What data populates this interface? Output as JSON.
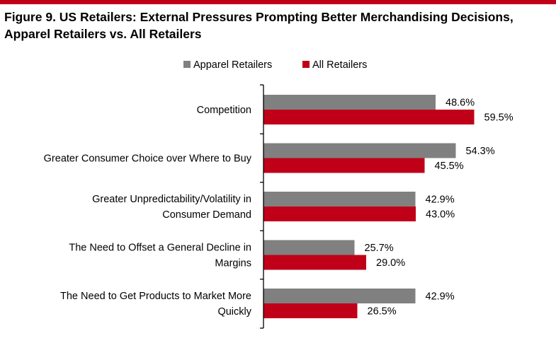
{
  "title_lines": [
    "Figure 9. US Retailers: External Pressures Prompting Better Merchandising Decisions,",
    "Apparel Retailers vs. All Retailers"
  ],
  "colors": {
    "title_rule": "#c00018",
    "apparel": "#808080",
    "all": "#c00018",
    "axis": "#000000"
  },
  "chart_data": {
    "type": "bar",
    "orientation": "horizontal",
    "title": "Figure 9. US Retailers: External Pressures Prompting Better Merchandising Decisions, Apparel Retailers vs. All Retailers",
    "xlabel": "",
    "ylabel": "",
    "value_format": "percent",
    "xlim": [
      0,
      70
    ],
    "grid": false,
    "legend_position": "top",
    "categories": [
      [
        "Competition"
      ],
      [
        "Greater Consumer Choice over Where to Buy"
      ],
      [
        "Greater Unpredictability/Volatility in",
        "Consumer Demand"
      ],
      [
        "The Need to Offset a General Decline in",
        "Margins"
      ],
      [
        "The Need to Get Products to Market More",
        "Quickly"
      ]
    ],
    "series": [
      {
        "name": "Apparel Retailers",
        "color": "#808080",
        "values": [
          48.6,
          54.3,
          42.9,
          25.7,
          42.9
        ]
      },
      {
        "name": "All Retailers",
        "color": "#c00018",
        "values": [
          59.5,
          45.5,
          43.0,
          29.0,
          26.5
        ]
      }
    ]
  }
}
